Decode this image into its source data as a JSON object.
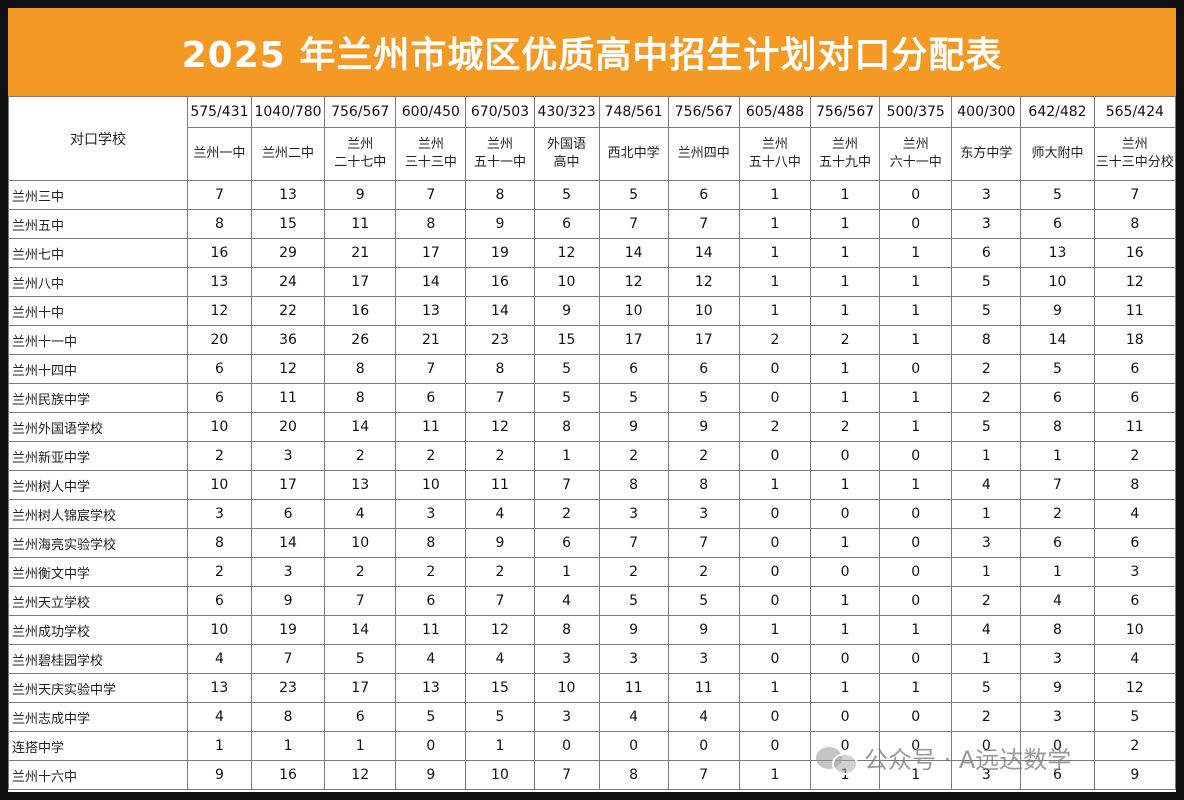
{
  "title": "2025 年兰州市城区优质高中招生计划对口分配表",
  "corner_label": "对口学校",
  "columns": [
    {
      "score": "575/431",
      "name": [
        "兰州一中"
      ]
    },
    {
      "score": "1040/780",
      "name": [
        "兰州二中"
      ]
    },
    {
      "score": "756/567",
      "name": [
        "兰州",
        "二十七中"
      ]
    },
    {
      "score": "600/450",
      "name": [
        "兰州",
        "三十三中"
      ]
    },
    {
      "score": "670/503",
      "name": [
        "兰州",
        "五十一中"
      ]
    },
    {
      "score": "430/323",
      "name": [
        "外国语",
        "高中"
      ]
    },
    {
      "score": "748/561",
      "name": [
        "西北中学"
      ]
    },
    {
      "score": "756/567",
      "name": [
        "兰州四中"
      ]
    },
    {
      "score": "605/488",
      "name": [
        "兰州",
        "五十八中"
      ]
    },
    {
      "score": "756/567",
      "name": [
        "兰州",
        "五十九中"
      ]
    },
    {
      "score": "500/375",
      "name": [
        "兰州",
        "六十一中"
      ]
    },
    {
      "score": "400/300",
      "name": [
        "东方中学"
      ]
    },
    {
      "score": "642/482",
      "name": [
        "师大附中"
      ]
    },
    {
      "score": "565/424",
      "name": [
        "兰州",
        "三十三中分校"
      ]
    }
  ],
  "rows": [
    {
      "school": "兰州三中",
      "values": [
        "7",
        "13",
        "9",
        "7",
        "8",
        "5",
        "5",
        "6",
        "1",
        "1",
        "0",
        "3",
        "5",
        "7"
      ]
    },
    {
      "school": "兰州五中",
      "values": [
        "8",
        "15",
        "11",
        "8",
        "9",
        "6",
        "7",
        "7",
        "1",
        "1",
        "0",
        "3",
        "6",
        "8"
      ]
    },
    {
      "school": "兰州七中",
      "values": [
        "16",
        "29",
        "21",
        "17",
        "19",
        "12",
        "14",
        "14",
        "1",
        "1",
        "1",
        "6",
        "13",
        "16"
      ]
    },
    {
      "school": "兰州八中",
      "values": [
        "13",
        "24",
        "17",
        "14",
        "16",
        "10",
        "12",
        "12",
        "1",
        "1",
        "1",
        "5",
        "10",
        "12"
      ]
    },
    {
      "school": "兰州十中",
      "values": [
        "12",
        "22",
        "16",
        "13",
        "14",
        "9",
        "10",
        "10",
        "1",
        "1",
        "1",
        "5",
        "9",
        "11"
      ]
    },
    {
      "school": "兰州十一中",
      "values": [
        "20",
        "36",
        "26",
        "21",
        "23",
        "15",
        "17",
        "17",
        "2",
        "2",
        "1",
        "8",
        "14",
        "18"
      ]
    },
    {
      "school": "兰州十四中",
      "values": [
        "6",
        "12",
        "8",
        "7",
        "8",
        "5",
        "6",
        "6",
        "0",
        "1",
        "0",
        "2",
        "5",
        "6"
      ]
    },
    {
      "school": "兰州民族中学",
      "values": [
        "6",
        "11",
        "8",
        "6",
        "7",
        "5",
        "5",
        "5",
        "0",
        "1",
        "1",
        "2",
        "6",
        "6"
      ]
    },
    {
      "school": "兰州外国语学校",
      "values": [
        "10",
        "20",
        "14",
        "11",
        "12",
        "8",
        "9",
        "9",
        "2",
        "2",
        "1",
        "5",
        "8",
        "11"
      ]
    },
    {
      "school": "兰州新亚中学",
      "values": [
        "2",
        "3",
        "2",
        "2",
        "2",
        "1",
        "2",
        "2",
        "0",
        "0",
        "0",
        "1",
        "1",
        "2"
      ]
    },
    {
      "school": "兰州树人中学",
      "values": [
        "10",
        "17",
        "13",
        "10",
        "11",
        "7",
        "8",
        "8",
        "1",
        "1",
        "1",
        "4",
        "7",
        "8"
      ]
    },
    {
      "school": "兰州树人锦宸学校",
      "values": [
        "3",
        "6",
        "4",
        "3",
        "4",
        "2",
        "3",
        "3",
        "0",
        "0",
        "0",
        "1",
        "2",
        "4"
      ]
    },
    {
      "school": "兰州海亮实验学校",
      "values": [
        "8",
        "14",
        "10",
        "8",
        "9",
        "6",
        "7",
        "7",
        "0",
        "1",
        "0",
        "3",
        "6",
        "6"
      ]
    },
    {
      "school": "兰州衡文中学",
      "values": [
        "2",
        "3",
        "2",
        "2",
        "2",
        "1",
        "2",
        "2",
        "0",
        "0",
        "0",
        "1",
        "1",
        "3"
      ]
    },
    {
      "school": "兰州天立学校",
      "values": [
        "6",
        "9",
        "7",
        "6",
        "7",
        "4",
        "5",
        "5",
        "0",
        "1",
        "0",
        "2",
        "4",
        "6"
      ]
    },
    {
      "school": "兰州成功学校",
      "values": [
        "10",
        "19",
        "14",
        "11",
        "12",
        "8",
        "9",
        "9",
        "1",
        "1",
        "1",
        "4",
        "8",
        "10"
      ]
    },
    {
      "school": "兰州碧桂园学校",
      "values": [
        "4",
        "7",
        "5",
        "4",
        "4",
        "3",
        "3",
        "3",
        "0",
        "0",
        "0",
        "1",
        "3",
        "4"
      ]
    },
    {
      "school": "兰州天庆实验中学",
      "values": [
        "13",
        "23",
        "17",
        "13",
        "15",
        "10",
        "11",
        "11",
        "1",
        "1",
        "1",
        "5",
        "9",
        "12"
      ]
    },
    {
      "school": "兰州志成中学",
      "values": [
        "4",
        "8",
        "6",
        "5",
        "5",
        "3",
        "4",
        "4",
        "0",
        "0",
        "0",
        "2",
        "3",
        "5"
      ]
    },
    {
      "school": "连搭中学",
      "values": [
        "1",
        "1",
        "1",
        "0",
        "1",
        "0",
        "0",
        "0",
        "0",
        "0",
        "0",
        "0",
        "0",
        "2"
      ]
    },
    {
      "school": "兰州十六中",
      "values": [
        "9",
        "16",
        "12",
        "9",
        "10",
        "7",
        "8",
        "7",
        "1",
        "1",
        "1",
        "3",
        "6",
        "9"
      ]
    }
  ],
  "watermark": {
    "brand_text": "公众号 · A远达数学",
    "icon": "wechat-icon"
  },
  "colors": {
    "title_bg": "#f49a24",
    "title_text": "#ffffff",
    "frame": "#111111"
  }
}
